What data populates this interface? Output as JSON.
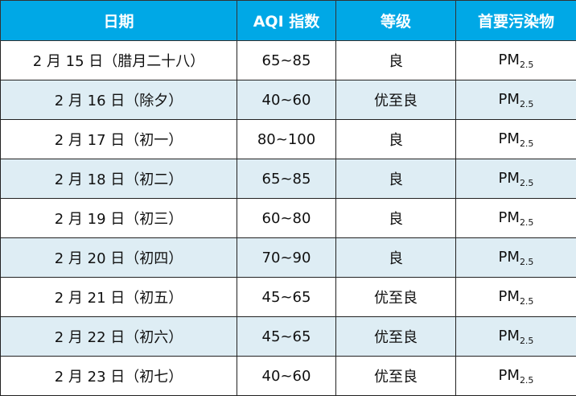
{
  "colors": {
    "header_bg": "#00a8e6",
    "alt_row_bg": "#deedf4"
  },
  "headers": [
    "日期",
    "AQI 指数",
    "等级",
    "首要污染物"
  ],
  "rows": [
    {
      "date": "2 月 15 日（腊月二十八）",
      "aqi": "65~85",
      "level": "良",
      "pollutant": "PM",
      "sub": "2.5"
    },
    {
      "date": "2 月 16 日（除夕）",
      "aqi": "40~60",
      "level": "优至良",
      "pollutant": "PM",
      "sub": "2.5"
    },
    {
      "date": "2 月 17 日（初一）",
      "aqi": "80~100",
      "level": "良",
      "pollutant": "PM",
      "sub": "2.5"
    },
    {
      "date": "2 月 18 日（初二）",
      "aqi": "65~85",
      "level": "良",
      "pollutant": "PM",
      "sub": "2.5"
    },
    {
      "date": "2 月 19 日（初三）",
      "aqi": "60~80",
      "level": "良",
      "pollutant": "PM",
      "sub": "2.5"
    },
    {
      "date": "2 月 20 日（初四）",
      "aqi": "70~90",
      "level": "良",
      "pollutant": "PM",
      "sub": "2.5"
    },
    {
      "date": "2 月 21 日（初五）",
      "aqi": "45~65",
      "level": "优至良",
      "pollutant": "PM",
      "sub": "2.5"
    },
    {
      "date": "2 月 22 日（初六）",
      "aqi": "45~65",
      "level": "优至良",
      "pollutant": "PM",
      "sub": "2.5"
    },
    {
      "date": "2 月 23 日（初七）",
      "aqi": "40~60",
      "level": "优至良",
      "pollutant": "PM",
      "sub": "2.5"
    }
  ]
}
